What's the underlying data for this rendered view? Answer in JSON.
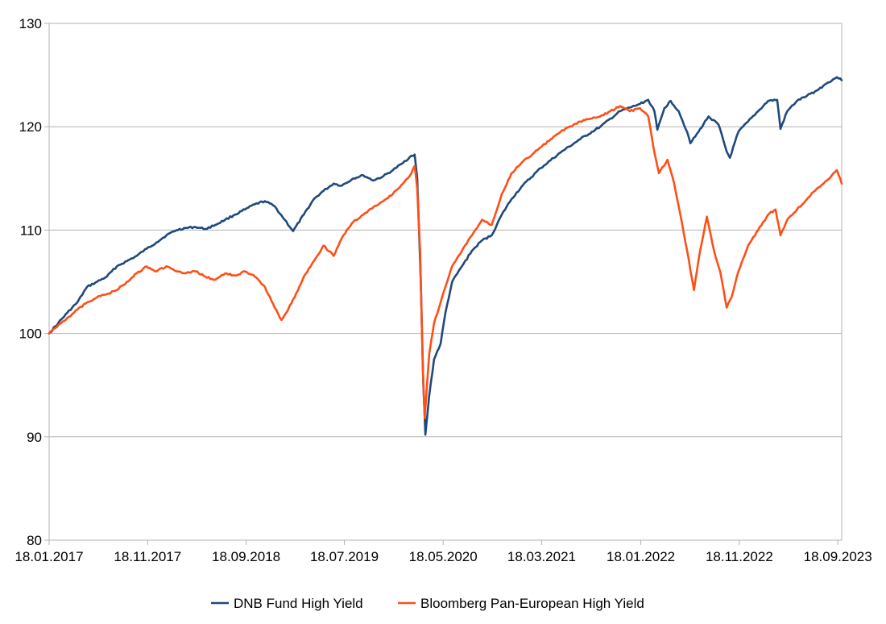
{
  "chart_data": {
    "type": "line",
    "title": "",
    "xlabel": "",
    "ylabel": "",
    "ylim": [
      80,
      130
    ],
    "yticks": [
      80,
      90,
      100,
      110,
      120,
      130
    ],
    "xlim": [
      "18.01.2017",
      "30.09.2023"
    ],
    "xticks": [
      "18.01.2017",
      "18.11.2017",
      "18.09.2018",
      "18.07.2019",
      "18.05.2020",
      "18.03.2021",
      "18.01.2022",
      "18.11.2022",
      "18.09.2023"
    ],
    "grid": "horizontal",
    "legend": "bottom-center",
    "series": [
      {
        "name": "DNB Fund High Yield",
        "color": "#1f497d",
        "points": [
          [
            "18.01.2017",
            100.0
          ],
          [
            "15.02.2017",
            101.0
          ],
          [
            "15.03.2017",
            102.0
          ],
          [
            "15.04.2017",
            103.0
          ],
          [
            "15.05.2017",
            104.5
          ],
          [
            "15.06.2017",
            105.0
          ],
          [
            "15.07.2017",
            105.5
          ],
          [
            "15.08.2017",
            106.5
          ],
          [
            "15.09.2017",
            107.0
          ],
          [
            "15.10.2017",
            107.5
          ],
          [
            "15.11.2017",
            108.2
          ],
          [
            "15.12.2017",
            108.8
          ],
          [
            "15.01.2018",
            109.5
          ],
          [
            "15.02.2018",
            110.0
          ],
          [
            "15.03.2018",
            110.2
          ],
          [
            "15.04.2018",
            110.3
          ],
          [
            "15.05.2018",
            110.1
          ],
          [
            "15.06.2018",
            110.5
          ],
          [
            "15.07.2018",
            111.0
          ],
          [
            "15.08.2018",
            111.5
          ],
          [
            "15.09.2018",
            112.0
          ],
          [
            "15.10.2018",
            112.5
          ],
          [
            "15.11.2018",
            112.8
          ],
          [
            "15.12.2018",
            112.3
          ],
          [
            "15.01.2019",
            111.0
          ],
          [
            "10.02.2019",
            109.9
          ],
          [
            "15.03.2019",
            111.5
          ],
          [
            "15.04.2019",
            113.0
          ],
          [
            "15.05.2019",
            113.8
          ],
          [
            "15.06.2019",
            114.5
          ],
          [
            "10.07.2019",
            114.3
          ],
          [
            "15.08.2019",
            115.0
          ],
          [
            "15.09.2019",
            115.3
          ],
          [
            "15.10.2019",
            114.8
          ],
          [
            "15.11.2019",
            115.2
          ],
          [
            "15.12.2019",
            115.8
          ],
          [
            "15.01.2020",
            116.5
          ],
          [
            "10.02.2020",
            117.2
          ],
          [
            "20.02.2020",
            117.3
          ],
          [
            "28.02.2020",
            115.0
          ],
          [
            "10.03.2020",
            105.0
          ],
          [
            "18.03.2020",
            95.0
          ],
          [
            "24.03.2020",
            90.2
          ],
          [
            "05.04.2020",
            94.0
          ],
          [
            "20.04.2020",
            97.5
          ],
          [
            "10.05.2020",
            99.0
          ],
          [
            "25.05.2020",
            102.0
          ],
          [
            "15.06.2020",
            105.0
          ],
          [
            "15.07.2020",
            106.5
          ],
          [
            "15.08.2020",
            108.0
          ],
          [
            "15.09.2020",
            109.0
          ],
          [
            "15.10.2020",
            109.5
          ],
          [
            "15.11.2020",
            111.5
          ],
          [
            "15.12.2020",
            113.0
          ],
          [
            "15.01.2021",
            114.2
          ],
          [
            "15.03.2021",
            116.0
          ],
          [
            "15.05.2021",
            117.5
          ],
          [
            "15.07.2021",
            118.8
          ],
          [
            "15.09.2021",
            120.0
          ],
          [
            "15.11.2021",
            121.5
          ],
          [
            "15.01.2022",
            122.2
          ],
          [
            "10.02.2022",
            122.6
          ],
          [
            "01.03.2022",
            121.5
          ],
          [
            "10.03.2022",
            119.7
          ],
          [
            "01.04.2022",
            121.8
          ],
          [
            "20.04.2022",
            122.5
          ],
          [
            "15.05.2022",
            121.5
          ],
          [
            "10.06.2022",
            119.5
          ],
          [
            "20.06.2022",
            118.4
          ],
          [
            "15.07.2022",
            119.5
          ],
          [
            "15.08.2022",
            121.0
          ],
          [
            "15.09.2022",
            120.2
          ],
          [
            "10.10.2022",
            117.6
          ],
          [
            "20.10.2022",
            117.0
          ],
          [
            "15.11.2022",
            119.5
          ],
          [
            "15.12.2022",
            120.5
          ],
          [
            "15.01.2023",
            121.5
          ],
          [
            "15.02.2023",
            122.5
          ],
          [
            "15.03.2023",
            122.6
          ],
          [
            "25.03.2023",
            119.8
          ],
          [
            "15.04.2023",
            121.5
          ],
          [
            "15.05.2023",
            122.5
          ],
          [
            "15.06.2023",
            123.0
          ],
          [
            "15.07.2023",
            123.5
          ],
          [
            "15.08.2023",
            124.2
          ],
          [
            "15.09.2023",
            124.8
          ],
          [
            "30.09.2023",
            124.5
          ]
        ]
      },
      {
        "name": "Bloomberg Pan-European High Yield",
        "color": "#ff4f16",
        "points": [
          [
            "18.01.2017",
            100.0
          ],
          [
            "15.02.2017",
            100.8
          ],
          [
            "15.03.2017",
            101.5
          ],
          [
            "15.04.2017",
            102.3
          ],
          [
            "15.05.2017",
            103.0
          ],
          [
            "15.06.2017",
            103.5
          ],
          [
            "15.07.2017",
            103.8
          ],
          [
            "15.08.2017",
            104.2
          ],
          [
            "15.09.2017",
            105.0
          ],
          [
            "15.10.2017",
            105.8
          ],
          [
            "15.11.2017",
            106.5
          ],
          [
            "15.12.2017",
            106.0
          ],
          [
            "15.01.2018",
            106.5
          ],
          [
            "15.02.2018",
            106.0
          ],
          [
            "15.03.2018",
            105.8
          ],
          [
            "15.04.2018",
            106.0
          ],
          [
            "15.05.2018",
            105.5
          ],
          [
            "15.06.2018",
            105.2
          ],
          [
            "15.07.2018",
            105.8
          ],
          [
            "15.08.2018",
            105.6
          ],
          [
            "15.09.2018",
            106.0
          ],
          [
            "15.10.2018",
            105.5
          ],
          [
            "15.11.2018",
            104.5
          ],
          [
            "15.12.2018",
            102.5
          ],
          [
            "05.01.2019",
            101.3
          ],
          [
            "15.01.2019",
            101.8
          ],
          [
            "15.02.2019",
            103.5
          ],
          [
            "15.03.2019",
            105.5
          ],
          [
            "15.04.2019",
            107.0
          ],
          [
            "15.05.2019",
            108.5
          ],
          [
            "15.06.2019",
            107.5
          ],
          [
            "15.07.2019",
            109.5
          ],
          [
            "15.08.2019",
            110.8
          ],
          [
            "15.09.2019",
            111.5
          ],
          [
            "15.10.2019",
            112.2
          ],
          [
            "15.11.2019",
            112.8
          ],
          [
            "15.12.2019",
            113.5
          ],
          [
            "15.01.2020",
            114.5
          ],
          [
            "10.02.2020",
            115.5
          ],
          [
            "20.02.2020",
            116.2
          ],
          [
            "28.02.2020",
            114.0
          ],
          [
            "08.03.2020",
            108.0
          ],
          [
            "16.03.2020",
            97.0
          ],
          [
            "22.03.2020",
            91.8
          ],
          [
            "05.04.2020",
            98.0
          ],
          [
            "20.04.2020",
            101.0
          ],
          [
            "10.05.2020",
            103.0
          ],
          [
            "25.05.2020",
            104.5
          ],
          [
            "15.06.2020",
            106.5
          ],
          [
            "15.07.2020",
            108.0
          ],
          [
            "15.08.2020",
            109.5
          ],
          [
            "15.09.2020",
            111.0
          ],
          [
            "15.10.2020",
            110.5
          ],
          [
            "15.11.2020",
            113.5
          ],
          [
            "15.12.2020",
            115.5
          ],
          [
            "15.01.2021",
            116.5
          ],
          [
            "15.03.2021",
            118.0
          ],
          [
            "15.05.2021",
            119.5
          ],
          [
            "15.07.2021",
            120.5
          ],
          [
            "15.09.2021",
            121.0
          ],
          [
            "15.11.2021",
            122.0
          ],
          [
            "15.12.2021",
            121.5
          ],
          [
            "15.01.2022",
            121.8
          ],
          [
            "10.02.2022",
            121.0
          ],
          [
            "01.03.2022",
            117.5
          ],
          [
            "15.03.2022",
            115.5
          ],
          [
            "10.04.2022",
            116.8
          ],
          [
            "01.05.2022",
            114.5
          ],
          [
            "20.05.2022",
            111.5
          ],
          [
            "10.06.2022",
            108.0
          ],
          [
            "01.07.2022",
            104.2
          ],
          [
            "20.07.2022",
            108.0
          ],
          [
            "10.08.2022",
            111.3
          ],
          [
            "01.09.2022",
            108.0
          ],
          [
            "20.09.2022",
            106.0
          ],
          [
            "10.10.2022",
            102.5
          ],
          [
            "25.10.2022",
            103.5
          ],
          [
            "15.11.2022",
            106.0
          ],
          [
            "15.12.2022",
            108.5
          ],
          [
            "15.01.2023",
            110.0
          ],
          [
            "15.02.2023",
            111.5
          ],
          [
            "10.03.2023",
            112.0
          ],
          [
            "25.03.2023",
            109.5
          ],
          [
            "15.04.2023",
            111.0
          ],
          [
            "15.05.2023",
            112.0
          ],
          [
            "15.06.2023",
            113.0
          ],
          [
            "15.07.2023",
            114.0
          ],
          [
            "15.08.2023",
            114.8
          ],
          [
            "15.09.2023",
            115.8
          ],
          [
            "30.09.2023",
            114.5
          ]
        ]
      }
    ]
  }
}
